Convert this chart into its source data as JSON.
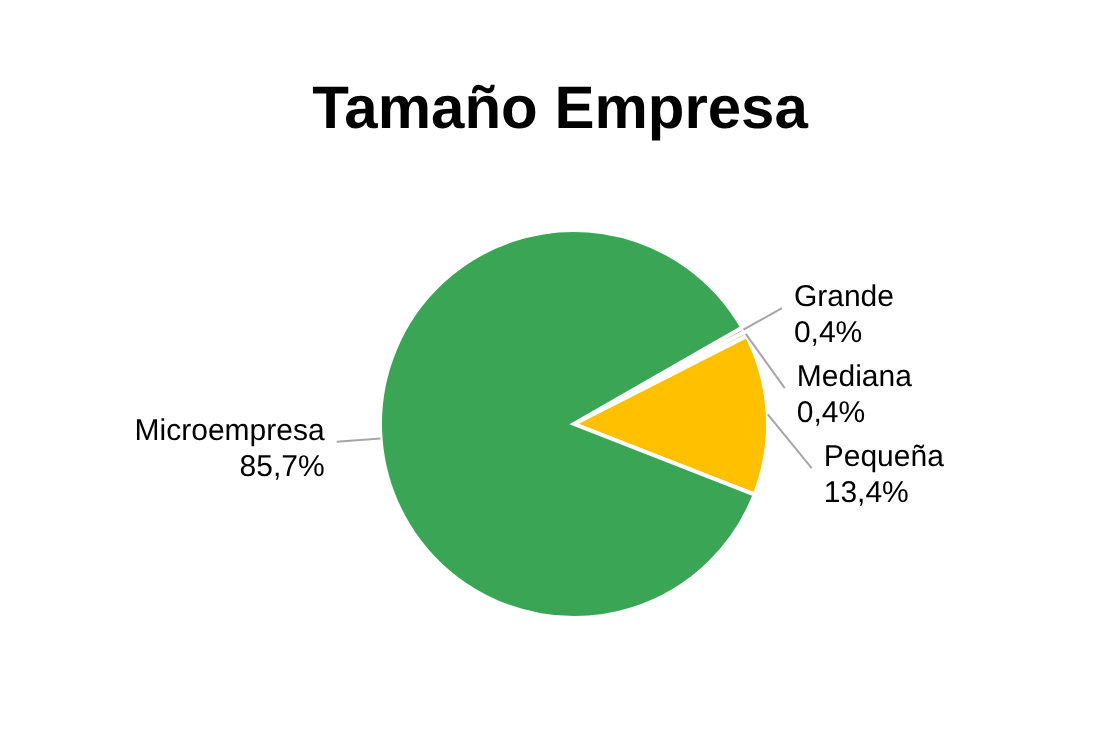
{
  "chart_data": {
    "type": "pie",
    "title": "Tamaño Empresa",
    "categories": [
      "Grande",
      "Mediana",
      "Pequeña",
      "Microempresa"
    ],
    "values": [
      0.4,
      0.4,
      13.4,
      85.7
    ],
    "colors": [
      "#e0504a",
      "#f4b183",
      "#ffc000",
      "#3aa655"
    ],
    "value_labels": [
      "0,4%",
      "0,4%",
      "13,4%",
      "85,7%"
    ],
    "legend": false
  }
}
